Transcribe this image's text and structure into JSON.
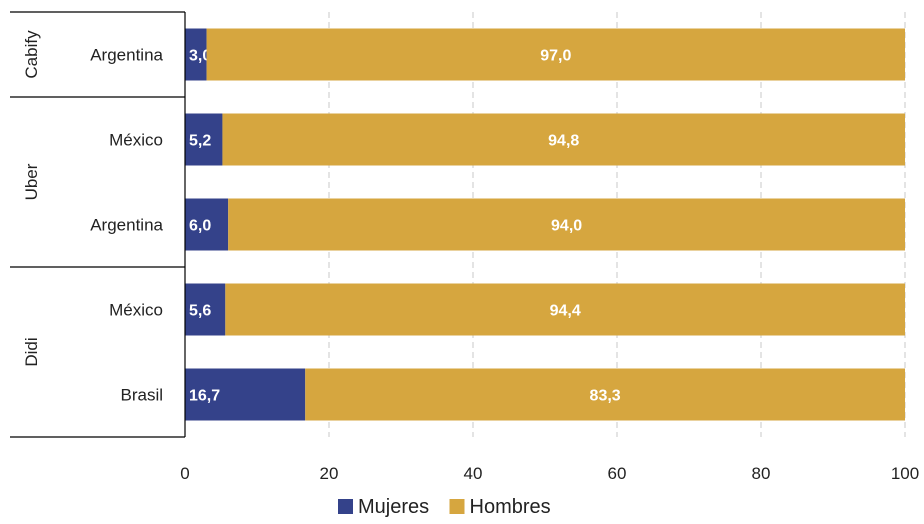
{
  "chart_data": {
    "type": "bar",
    "orientation": "horizontal",
    "stacked": true,
    "groups": [
      {
        "name": "Cabify",
        "categories": [
          "Argentina"
        ]
      },
      {
        "name": "Uber",
        "categories": [
          "México",
          "Argentina"
        ]
      },
      {
        "name": "Didi",
        "categories": [
          "México",
          "Brasil"
        ]
      }
    ],
    "rows": [
      {
        "group": "Cabify",
        "category": "Argentina",
        "mujeres": 3.0,
        "hombres": 97.0,
        "mujeres_label": "3,0",
        "hombres_label": "97,0"
      },
      {
        "group": "Uber",
        "category": "México",
        "mujeres": 5.2,
        "hombres": 94.8,
        "mujeres_label": "5,2",
        "hombres_label": "94,8"
      },
      {
        "group": "Uber",
        "category": "Argentina",
        "mujeres": 6.0,
        "hombres": 94.0,
        "mujeres_label": "6,0",
        "hombres_label": "94,0"
      },
      {
        "group": "Didi",
        "category": "México",
        "mujeres": 5.6,
        "hombres": 94.4,
        "mujeres_label": "5,6",
        "hombres_label": "94,4"
      },
      {
        "group": "Didi",
        "category": "Brasil",
        "mujeres": 16.7,
        "hombres": 83.3,
        "mujeres_label": "16,7",
        "hombres_label": "83,3"
      }
    ],
    "series": [
      {
        "name": "Mujeres",
        "key": "mujeres",
        "color": "#34428a"
      },
      {
        "name": "Hombres",
        "key": "hombres",
        "color": "#d6a63f"
      }
    ],
    "xlim": [
      0,
      100
    ],
    "xticks": [
      0,
      20,
      40,
      60,
      80,
      100
    ],
    "grid": true,
    "legend_position": "bottom"
  }
}
